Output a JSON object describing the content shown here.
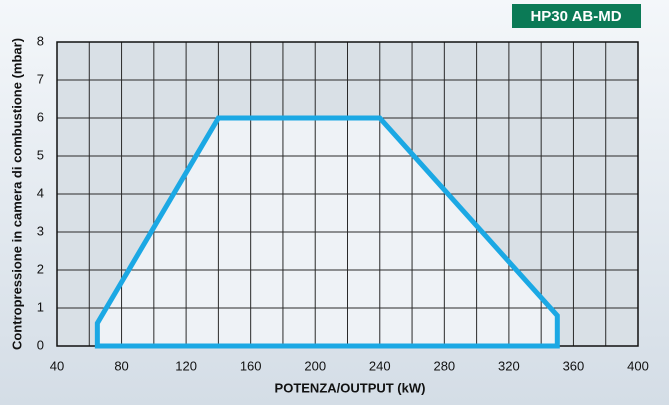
{
  "chart_data": {
    "type": "area",
    "badge": "HP30 AB-MD",
    "xlabel": "POTENZA/OUTPUT (kW)",
    "ylabel": "Contropressione in camera di combustione (mbar)",
    "x": [
      65,
      65,
      140,
      240,
      350,
      350
    ],
    "values": [
      0,
      0.6,
      6,
      6,
      0.8,
      0
    ],
    "color": "#1ba8e4",
    "xlim": [
      40,
      400
    ],
    "ylim": [
      0,
      8
    ],
    "xticks": [
      40,
      80,
      120,
      160,
      200,
      240,
      280,
      320,
      360,
      400
    ],
    "xminor": [
      60,
      100,
      140,
      180,
      220,
      260,
      300,
      340,
      380
    ],
    "yticks": [
      0,
      1,
      2,
      3,
      4,
      5,
      6,
      7,
      8
    ],
    "grid": true
  }
}
